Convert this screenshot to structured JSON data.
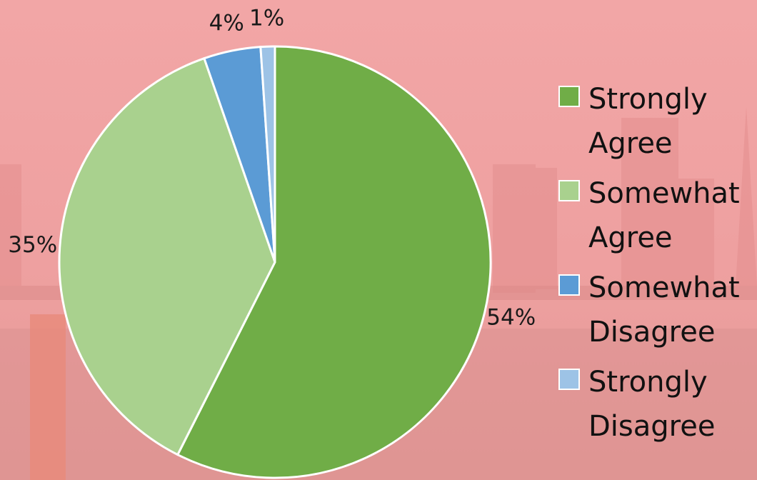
{
  "chart_data": {
    "type": "pie",
    "categories": [
      "Strongly Agree",
      "Somewhat Agree",
      "Somewhat Disagree",
      "Strongly Disagree"
    ],
    "values": [
      54,
      35,
      4,
      1
    ],
    "value_labels": [
      "54%",
      "35%",
      "4%",
      "1%"
    ],
    "colors": [
      "#70ad47",
      "#a9d18e",
      "#5b9bd5",
      "#9dc3e6"
    ],
    "legend": "right"
  }
}
